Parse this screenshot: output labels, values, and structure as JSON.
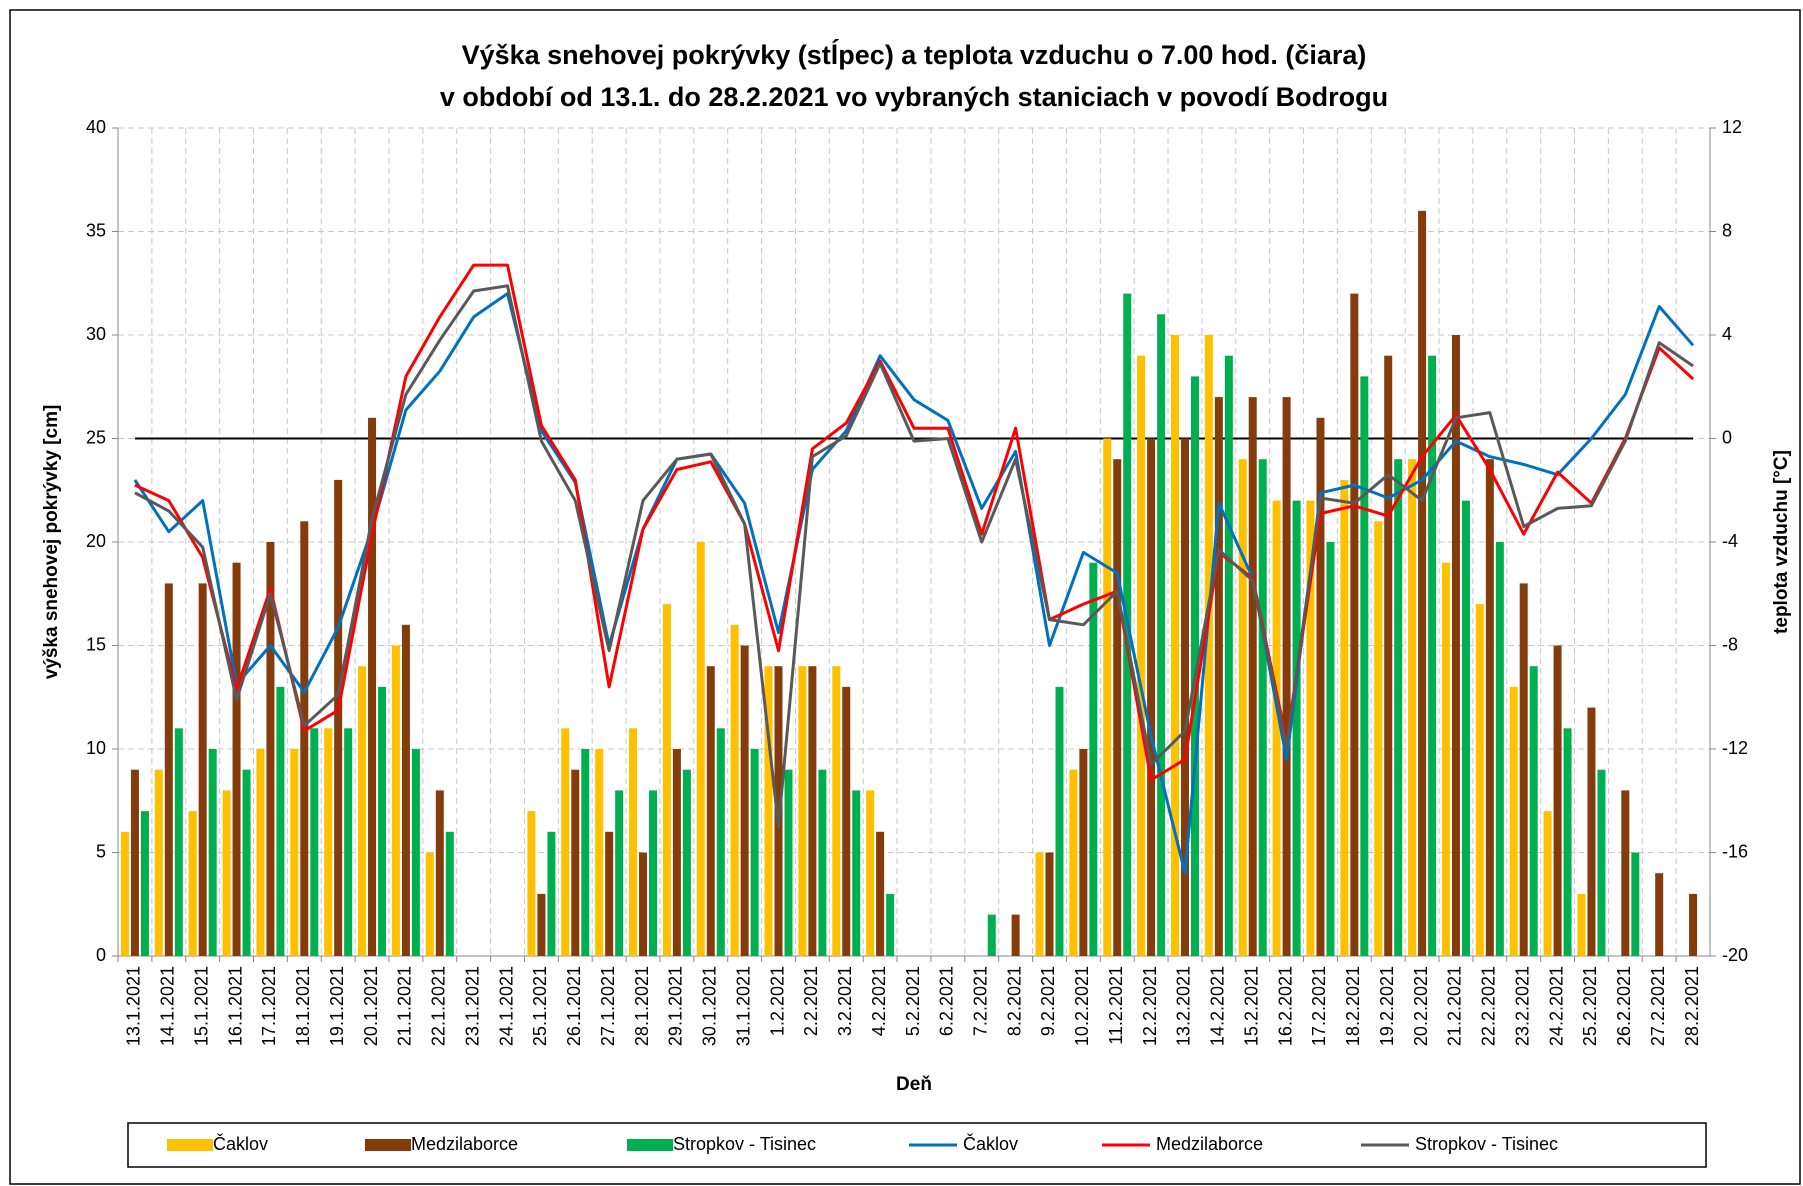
{
  "chart_data": {
    "type": "combo",
    "title": "Výška snehovej pokrývky (stĺpec) a teplota vzduchu o 7.00 hod. (čiara)",
    "subtitle": "v období od 13.1. do 28.2.2021 vo vybraných staniciach v povodí  Bodrogu",
    "xlabel": "Deň",
    "ylabel": "výška snehovej pokrývky  [cm]",
    "y2label": "teplota vzduchu [°C]",
    "categories": [
      "13.1.2021",
      "14.1.2021",
      "15.1.2021",
      "16.1.2021",
      "17.1.2021",
      "18.1.2021",
      "19.1.2021",
      "20.1.2021",
      "21.1.2021",
      "22.1.2021",
      "23.1.2021",
      "24.1.2021",
      "25.1.2021",
      "26.1.2021",
      "27.1.2021",
      "28.1.2021",
      "29.1.2021",
      "30.1.2021",
      "31.1.2021",
      "1.2.2021",
      "2.2.2021",
      "3.2.2021",
      "4.2.2021",
      "5.2.2021",
      "6.2.2021",
      "7.2.2021",
      "8.2.2021",
      "9.2.2021",
      "10.2.2021",
      "11.2.2021",
      "12.2.2021",
      "13.2.2021",
      "14.2.2021",
      "15.2.2021",
      "16.2.2021",
      "17.2.2021",
      "18.2.2021",
      "19.2.2021",
      "20.2.2021",
      "21.2.2021",
      "22.2.2021",
      "23.2.2021",
      "24.2.2021",
      "25.2.2021",
      "26.2.2021",
      "27.2.2021",
      "28.2.2021"
    ],
    "ylim": [
      0,
      40
    ],
    "yticks": [
      0,
      5,
      10,
      15,
      20,
      25,
      30,
      35,
      40
    ],
    "y2lim": [
      -20,
      12
    ],
    "y2ticks": [
      -20,
      -16,
      -12,
      -8,
      -4,
      0,
      4,
      8,
      12
    ],
    "grid": true,
    "series": [
      {
        "name": "Čaklov",
        "type": "bar",
        "color": "#ffc000",
        "values": [
          6,
          9,
          7,
          8,
          10,
          10,
          11,
          14,
          15,
          5,
          0,
          0,
          7,
          11,
          10,
          11,
          17,
          20,
          16,
          14,
          14,
          14,
          8,
          0,
          0,
          0,
          0,
          5,
          9,
          25,
          29,
          30,
          30,
          24,
          22,
          22,
          23,
          21,
          24,
          19,
          17,
          13,
          7,
          3,
          0,
          0,
          0
        ]
      },
      {
        "name": "Medzilaborce",
        "type": "bar",
        "color": "#843c0c",
        "values": [
          9,
          18,
          18,
          19,
          20,
          21,
          23,
          26,
          16,
          8,
          0,
          0,
          3,
          9,
          6,
          5,
          10,
          14,
          15,
          14,
          14,
          13,
          6,
          0,
          0,
          0,
          2,
          5,
          10,
          24,
          25,
          25,
          27,
          27,
          27,
          26,
          32,
          29,
          36,
          30,
          24,
          18,
          15,
          12,
          8,
          4,
          3
        ]
      },
      {
        "name": "Stropkov - Tisinec",
        "type": "bar",
        "color": "#00b050",
        "values": [
          7,
          11,
          10,
          9,
          13,
          11,
          11,
          13,
          10,
          6,
          0,
          0,
          6,
          10,
          8,
          8,
          9,
          11,
          10,
          9,
          9,
          8,
          3,
          0,
          0,
          2,
          0,
          13,
          19,
          32,
          31,
          28,
          29,
          24,
          22,
          20,
          28,
          24,
          29,
          22,
          20,
          14,
          11,
          9,
          5,
          0,
          0
        ]
      },
      {
        "name": "Čaklov",
        "type": "line",
        "axis": "y2",
        "color": "#0070c0",
        "values": [
          -1.6,
          -3.6,
          -2.4,
          -9.5,
          -8.0,
          -9.8,
          -7.3,
          -3.5,
          1.1,
          2.6,
          4.7,
          5.6,
          0.3,
          -1.7,
          -8.0,
          -3.5,
          -0.8,
          -0.6,
          -2.5,
          -7.5,
          -1.2,
          0.3,
          3.2,
          1.5,
          0.7,
          -2.7,
          -0.5,
          -8.0,
          -4.4,
          -5.2,
          -11.5,
          -16.8,
          -2.5,
          -5.4,
          -12.4,
          -2.1,
          -1.8,
          -2.3,
          -1.6,
          -0.1,
          -0.7,
          -1.0,
          -1.4,
          0.0,
          1.7,
          5.1,
          3.6
        ]
      },
      {
        "name": "Medzilaborce",
        "type": "line",
        "axis": "y2",
        "color": "#ff0000",
        "values": [
          -1.8,
          -2.4,
          -4.6,
          -9.7,
          -5.8,
          -11.3,
          -10.5,
          -3.7,
          2.4,
          4.7,
          6.7,
          6.7,
          0.5,
          -1.6,
          -9.6,
          -3.5,
          -1.2,
          -0.9,
          -3.3,
          -8.2,
          -0.4,
          0.6,
          3.0,
          0.4,
          0.4,
          -3.7,
          0.4,
          -7.0,
          -6.4,
          -5.9,
          -13.2,
          -12.4,
          -4.4,
          -5.4,
          -11.7,
          -2.9,
          -2.6,
          -3.0,
          -0.7,
          0.9,
          -1.2,
          -3.7,
          -1.3,
          -2.5,
          0.0,
          3.5,
          2.3
        ]
      },
      {
        "name": "Stropkov - Tisinec",
        "type": "line",
        "axis": "y2",
        "color": "#595959",
        "values": [
          -2.1,
          -2.8,
          -4.2,
          -10.1,
          -6.0,
          -11.1,
          -9.9,
          -3.1,
          1.7,
          3.8,
          5.7,
          5.9,
          -0.1,
          -2.4,
          -8.2,
          -2.4,
          -0.8,
          -0.6,
          -3.3,
          -15.0,
          -0.7,
          0.1,
          2.9,
          -0.1,
          0.0,
          -4.0,
          -0.8,
          -7.0,
          -7.2,
          -5.9,
          -12.6,
          -11.3,
          -4.3,
          -5.5,
          -11.9,
          -2.3,
          -2.5,
          -1.4,
          -2.4,
          0.8,
          1.0,
          -3.4,
          -2.7,
          -2.6,
          -0.1,
          3.7,
          2.8
        ]
      }
    ]
  }
}
